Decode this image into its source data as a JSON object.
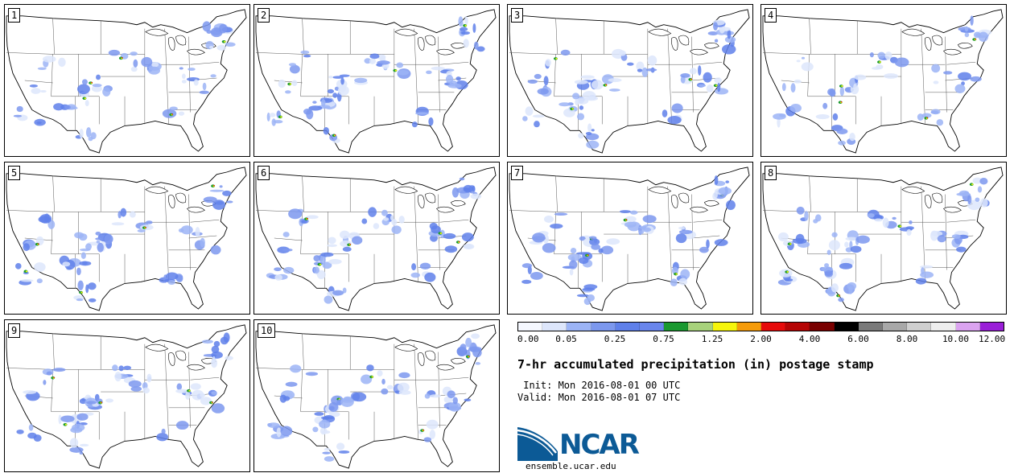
{
  "panels": [
    {
      "number": "1"
    },
    {
      "number": "2"
    },
    {
      "number": "3"
    },
    {
      "number": "4"
    },
    {
      "number": "5"
    },
    {
      "number": "6"
    },
    {
      "number": "7"
    },
    {
      "number": "8"
    },
    {
      "number": "9"
    },
    {
      "number": "10"
    }
  ],
  "colorbar": {
    "colors": [
      "#f5f8ff",
      "#dde6fb",
      "#9cb4f6",
      "#7c98ee",
      "#5f80ea",
      "#6a86ec",
      "#1a9930",
      "#a7d27b",
      "#f6f50b",
      "#f59b0a",
      "#e60a0a",
      "#b50404",
      "#790000",
      "#000000",
      "#7a7a7a",
      "#a8a8a8",
      "#cfcfcf",
      "#eeeeee",
      "#dba3f0",
      "#9a1ed8"
    ],
    "labels": [
      "0.00",
      "0.05",
      "0.25",
      "0.75",
      "1.25",
      "2.00",
      "4.00",
      "6.00",
      "8.00",
      "10.00",
      "12.00"
    ]
  },
  "title": "7-hr accumulated precipitation (in) postage stamp",
  "init_line": " Init: Mon 2016-08-01 00 UTC",
  "valid_line": "Valid: Mon 2016-08-01 07 UTC",
  "logo_text": "NCAR",
  "logo_url": "ensemble.ucar.edu",
  "logo_colors": {
    "text": "#0c5a96",
    "swoosh": "#0c5a96"
  }
}
